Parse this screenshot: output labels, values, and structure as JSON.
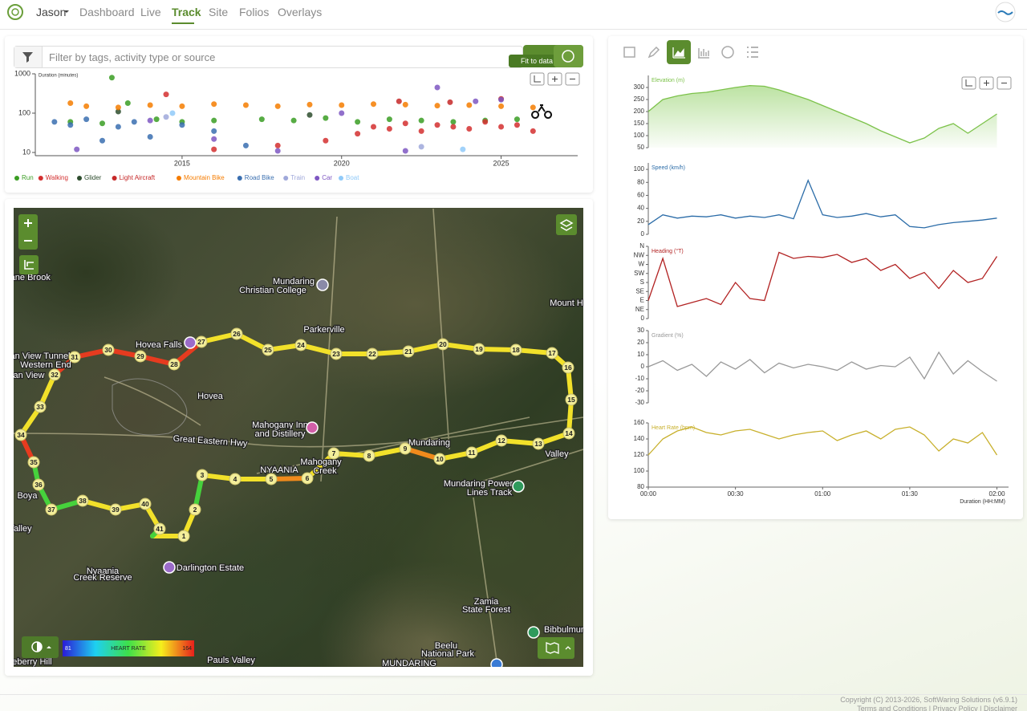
{
  "nav": {
    "user": "Jason",
    "items": [
      "Dashboard",
      "Live",
      "Track",
      "Site",
      "Folios",
      "Overlays"
    ],
    "active": "Track"
  },
  "filter": {
    "placeholder": "Filter by tags, activity type or source",
    "tooltip": "Fit to data"
  },
  "chart_data": [
    {
      "type": "scatter",
      "ylabel": "Duration (minutes)",
      "log_y": true,
      "xlim": [
        2010.4,
        2027.4
      ],
      "xticks": [
        2015,
        2020,
        2025
      ],
      "ylim": [
        10,
        1000
      ],
      "yticks": [
        10,
        100,
        1000
      ],
      "series": [
        {
          "name": "Run",
          "color": "#3a9d23",
          "x": [
            2011.5,
            2012.5,
            2012.8,
            2013.3,
            2014.2,
            2015,
            2016,
            2017.5,
            2018.5,
            2019.5,
            2020.5,
            2021.5,
            2022.5,
            2023.5,
            2024.5,
            2025.5
          ],
          "values": [
            60,
            55,
            800,
            180,
            70,
            60,
            65,
            70,
            65,
            75,
            60,
            70,
            65,
            60,
            65,
            70
          ]
        },
        {
          "name": "Walking",
          "color": "#d32f2f",
          "x": [
            2014.5,
            2016,
            2018,
            2019.5,
            2020.5,
            2021,
            2021.5,
            2022,
            2022.5,
            2023,
            2023.5,
            2024,
            2024.5,
            2025,
            2025.5,
            2026
          ],
          "values": [
            300,
            12,
            15,
            20,
            30,
            45,
            40,
            55,
            35,
            50,
            45,
            40,
            60,
            45,
            50,
            35
          ]
        },
        {
          "name": "Glider",
          "color": "#2e4d2e",
          "x": [
            2013,
            2019
          ],
          "values": [
            110,
            90
          ]
        },
        {
          "name": "Light Aircraft",
          "color": "#c62828",
          "x": [
            2021.8,
            2023.4,
            2025
          ],
          "values": [
            200,
            190,
            230
          ]
        },
        {
          "name": "Mountain Bike",
          "color": "#f57c00",
          "x": [
            2011.5,
            2012,
            2013,
            2014,
            2015,
            2016,
            2017,
            2018,
            2019,
            2020,
            2021,
            2022,
            2023,
            2024,
            2025,
            2026
          ],
          "values": [
            180,
            150,
            140,
            160,
            150,
            170,
            160,
            150,
            165,
            160,
            170,
            165,
            155,
            160,
            150,
            140
          ]
        },
        {
          "name": "Road Bike",
          "color": "#3a6fb0",
          "x": [
            2011,
            2011.5,
            2012,
            2012.5,
            2013,
            2013.5,
            2014,
            2015,
            2016,
            2017
          ],
          "values": [
            60,
            50,
            70,
            20,
            45,
            60,
            25,
            50,
            35,
            15
          ]
        },
        {
          "name": "Train",
          "color": "#9fa8da",
          "x": [
            2014.5,
            2022.5
          ],
          "values": [
            80,
            14
          ]
        },
        {
          "name": "Car",
          "color": "#7e57c2",
          "x": [
            2011.7,
            2014,
            2016,
            2018,
            2020,
            2022,
            2023,
            2024.2,
            2025
          ],
          "values": [
            12,
            65,
            22,
            11,
            100,
            11,
            450,
            200,
            220
          ]
        },
        {
          "name": "Boat",
          "color": "#90caf9",
          "x": [
            2014.7,
            2023.8
          ],
          "values": [
            100,
            12
          ]
        }
      ]
    },
    {
      "type": "line",
      "ylabel": "Elevation (m)",
      "color": "#7cc24a",
      "fill": true,
      "xlim": [
        0,
        124
      ],
      "ylim": [
        50,
        350
      ],
      "yticks": [
        50,
        100,
        150,
        200,
        250,
        300
      ],
      "x": [
        0,
        5,
        10,
        15,
        20,
        25,
        30,
        35,
        40,
        45,
        50,
        55,
        60,
        65,
        70,
        75,
        80,
        85,
        90,
        95,
        100,
        105,
        110,
        115,
        120
      ],
      "values": [
        200,
        250,
        265,
        275,
        280,
        290,
        300,
        308,
        305,
        290,
        270,
        250,
        225,
        200,
        175,
        150,
        120,
        95,
        70,
        90,
        130,
        150,
        110,
        150,
        190
      ]
    },
    {
      "type": "line",
      "ylabel": "Speed (km/h)",
      "color": "#2b6ca8",
      "fill": false,
      "xlim": [
        0,
        124
      ],
      "ylim": [
        0,
        110
      ],
      "yticks": [
        0,
        20,
        40,
        60,
        80,
        100
      ],
      "x": [
        0,
        5,
        10,
        15,
        20,
        25,
        30,
        35,
        40,
        45,
        50,
        55,
        60,
        65,
        70,
        75,
        80,
        85,
        90,
        95,
        100,
        105,
        110,
        115,
        120
      ],
      "values": [
        15,
        30,
        25,
        28,
        27,
        30,
        25,
        28,
        26,
        30,
        24,
        83,
        30,
        26,
        28,
        32,
        27,
        30,
        12,
        10,
        15,
        18,
        20,
        22,
        25
      ]
    },
    {
      "type": "line",
      "ylabel": "Heading (°T)",
      "color": "#b22222",
      "fill": false,
      "xlim": [
        0,
        124
      ],
      "ylim": [
        0,
        360
      ],
      "yticks": [
        0,
        {
          "value": 45,
          "label": "NE"
        },
        {
          "value": 90,
          "label": "E"
        },
        {
          "value": 135,
          "label": "SE"
        },
        {
          "value": 180,
          "label": "S"
        },
        {
          "value": 225,
          "label": "SW"
        },
        {
          "value": 270,
          "label": "W"
        },
        {
          "value": 315,
          "label": "NW"
        },
        {
          "value": 360,
          "label": "N"
        }
      ],
      "x": [
        0,
        5,
        10,
        15,
        20,
        25,
        30,
        35,
        40,
        45,
        50,
        55,
        60,
        65,
        70,
        75,
        80,
        85,
        90,
        95,
        100,
        105,
        110,
        115,
        120
      ],
      "values": [
        90,
        300,
        60,
        80,
        100,
        70,
        180,
        100,
        90,
        330,
        300,
        310,
        305,
        320,
        280,
        300,
        240,
        270,
        200,
        230,
        150,
        240,
        180,
        200,
        310
      ]
    },
    {
      "type": "line",
      "ylabel": "Gradient (%)",
      "color": "#999999",
      "fill": false,
      "xlim": [
        0,
        124
      ],
      "ylim": [
        -30,
        30
      ],
      "yticks": [
        -30,
        -20,
        -10,
        0,
        10,
        20,
        30
      ],
      "x": [
        0,
        5,
        10,
        15,
        20,
        25,
        30,
        35,
        40,
        45,
        50,
        55,
        60,
        65,
        70,
        75,
        80,
        85,
        90,
        95,
        100,
        105,
        110,
        115,
        120
      ],
      "values": [
        0,
        5,
        -3,
        2,
        -8,
        4,
        -2,
        6,
        -5,
        3,
        -1,
        2,
        0,
        -3,
        4,
        -2,
        1,
        0,
        8,
        -10,
        12,
        -6,
        5,
        -4,
        -12
      ]
    },
    {
      "type": "line",
      "ylabel": "Heart Rate (bpm)",
      "color": "#c8b02c",
      "fill": false,
      "xlim": [
        0,
        124
      ],
      "ylim": [
        80,
        160
      ],
      "yticks": [
        80,
        100,
        120,
        140,
        160
      ],
      "xticks": [
        {
          "value": 0,
          "label": "00:00"
        },
        {
          "value": 30,
          "label": "00:30"
        },
        {
          "value": 60,
          "label": "01:00"
        },
        {
          "value": 90,
          "label": "01:30"
        },
        {
          "value": 120,
          "label": "02:00"
        }
      ],
      "xlabel": "Duration (HH:MM)",
      "x": [
        0,
        5,
        10,
        15,
        20,
        25,
        30,
        35,
        40,
        45,
        50,
        55,
        60,
        65,
        70,
        75,
        80,
        85,
        90,
        95,
        100,
        105,
        110,
        115,
        120
      ],
      "values": [
        120,
        140,
        150,
        155,
        148,
        145,
        150,
        152,
        146,
        140,
        145,
        148,
        150,
        138,
        145,
        150,
        140,
        152,
        155,
        145,
        125,
        140,
        135,
        148,
        120
      ]
    }
  ],
  "map": {
    "places": [
      "Jane Brook",
      "Mundaring",
      "Christian College",
      "Parkerville",
      "Hovea Falls",
      "Hovea",
      "Mahogany Inn",
      "and Distillery",
      "Great Eastern Hwy",
      "Mundaring",
      "Mahogany",
      "Creek",
      "NYAANIA",
      "Valley",
      "Mundaring Power",
      "Lines Track",
      "Darlington Estate",
      "Nyaania",
      "Creek Reserve",
      "Boya",
      "Zamia",
      "State Forest",
      "Beelu",
      "National Park",
      "Pauls Valley",
      "MUNDARING",
      "Bibbulmun",
      "Mount H",
      "an View Tunnel",
      "Western End",
      "an View",
      "Valley",
      "eberry Hill"
    ],
    "route_markers": [
      1,
      2,
      3,
      4,
      5,
      6,
      7,
      8,
      9,
      10,
      11,
      12,
      13,
      14,
      15,
      16,
      17,
      18,
      19,
      20,
      21,
      22,
      23,
      24,
      25,
      26,
      27,
      28,
      29,
      30,
      31,
      32,
      33,
      34,
      35,
      36,
      37,
      38,
      39,
      40,
      41
    ],
    "legend": {
      "title": "HEART RATE",
      "min": 81,
      "max": 164
    }
  },
  "footer": {
    "copyright": "Copyright (C) 2013-2026, SoftWaring Solutions (v6.9.1)",
    "links": "Terms and Conditions | Privacy Policy | Disclaimer"
  }
}
